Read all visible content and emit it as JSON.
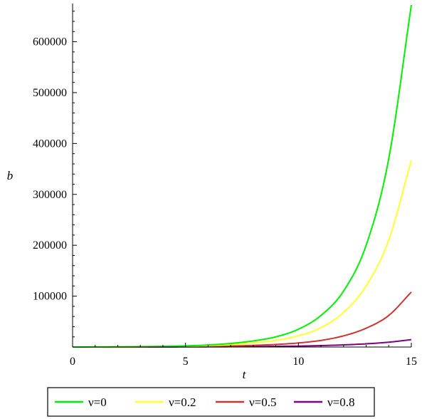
{
  "chart_data": {
    "type": "line",
    "xlabel": "t",
    "ylabel": "b",
    "xlim": [
      0,
      15
    ],
    "ylim": [
      0,
      675000
    ],
    "xticks": [
      0,
      5,
      10,
      15
    ],
    "yticks": [
      100000,
      200000,
      300000,
      400000,
      500000,
      600000
    ],
    "grid": false,
    "legend_position": "bottom",
    "x": [
      0,
      1,
      2,
      3,
      4,
      5,
      6,
      7,
      8,
      9,
      10,
      11,
      12,
      13,
      14,
      15
    ],
    "series": [
      {
        "name": "ν=0",
        "color": "#00ee00",
        "values": [
          0,
          150,
          350,
          700,
          1300,
          2300,
          4000,
          7000,
          12000,
          20000,
          35000,
          62000,
          110000,
          200000,
          370000,
          672000
        ]
      },
      {
        "name": "ν=0.2",
        "color": "#ffff33",
        "values": [
          0,
          100,
          250,
          500,
          900,
          1600,
          2800,
          4800,
          8200,
          13000,
          22000,
          38000,
          68000,
          120000,
          210000,
          367000
        ]
      },
      {
        "name": "ν=0.5",
        "color": "#cc3333",
        "values": [
          0,
          50,
          120,
          250,
          450,
          750,
          1250,
          2000,
          3200,
          5000,
          8000,
          13000,
          22000,
          37000,
          62000,
          108000
        ]
      },
      {
        "name": "ν=0.8",
        "color": "#800080",
        "values": [
          0,
          20,
          50,
          100,
          180,
          300,
          450,
          650,
          900,
          1300,
          1900,
          2800,
          4200,
          6300,
          9500,
          14500
        ]
      }
    ]
  }
}
